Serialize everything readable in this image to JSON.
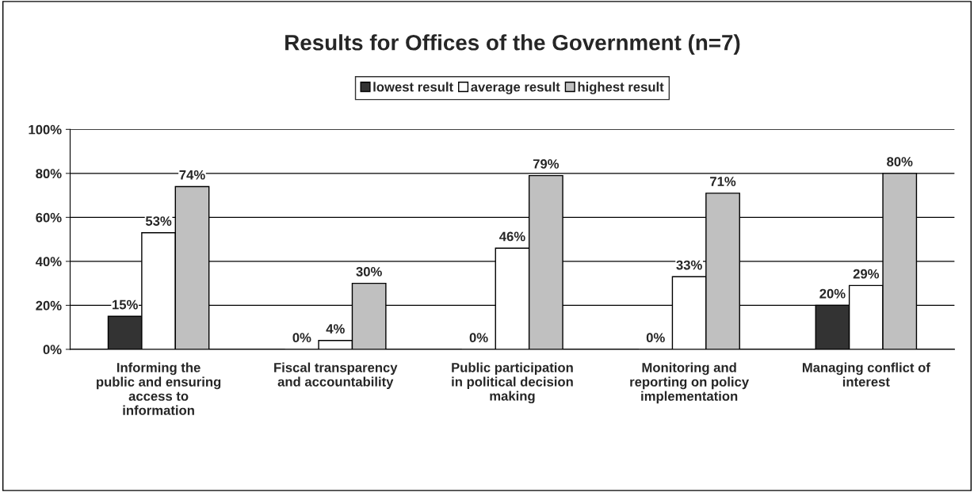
{
  "chart_data": {
    "type": "bar",
    "title": "Results for Offices of the Government (n=7)",
    "categories": [
      "Informing the\npublic and ensuring\naccess to\ninformation",
      "Fiscal transparency\nand accountability",
      "Public participation\nin political decision\nmaking",
      "Monitoring and\nreporting on policy\nimplementation",
      "Managing conflict of\ninterest"
    ],
    "series": [
      {
        "name": "lowest result",
        "color": "#333333",
        "values": [
          15,
          0,
          0,
          0,
          20
        ],
        "value_labels": [
          "15%",
          "0%",
          "0%",
          "0%",
          "20%"
        ]
      },
      {
        "name": "average result",
        "color": "#ffffff",
        "values": [
          53,
          4,
          46,
          33,
          29
        ],
        "value_labels": [
          "53%",
          "4%",
          "46%",
          "33%",
          "29%"
        ]
      },
      {
        "name": "highest result",
        "color": "#c0c0c0",
        "values": [
          74,
          30,
          79,
          71,
          80
        ],
        "value_labels": [
          "74%",
          "30%",
          "79%",
          "71%",
          "80%"
        ]
      }
    ],
    "ylim": [
      0,
      100
    ],
    "yticks": [
      {
        "value": 0,
        "label": "0%"
      },
      {
        "value": 20,
        "label": "20%"
      },
      {
        "value": 40,
        "label": "40%"
      },
      {
        "value": 60,
        "label": "60%"
      },
      {
        "value": 80,
        "label": "80%"
      },
      {
        "value": 100,
        "label": "100%"
      }
    ],
    "grid": "y",
    "legend": "top"
  }
}
